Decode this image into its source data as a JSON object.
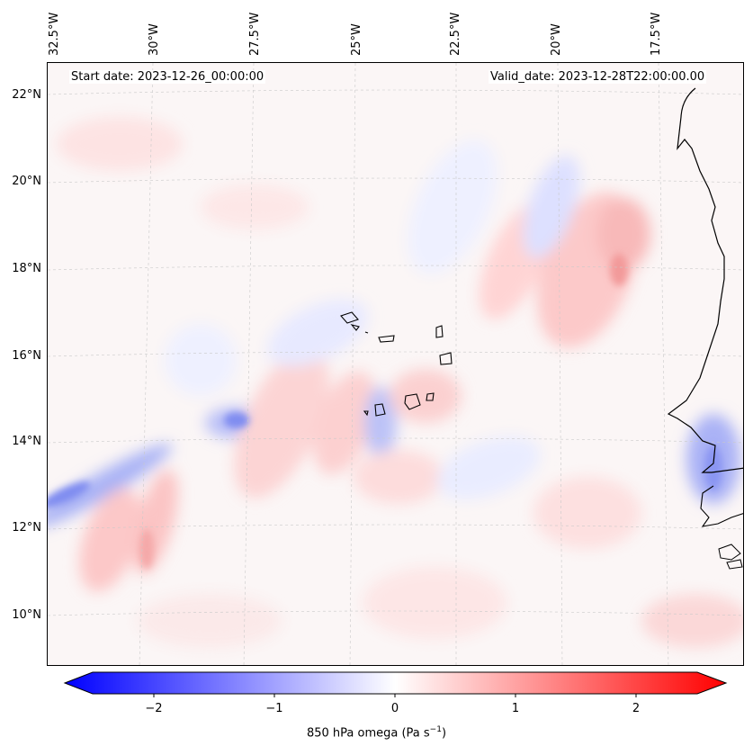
{
  "map": {
    "start_date": "Start date: 2023-12-26_00:00:00",
    "valid_date": "Valid_date: 2023-12-28T22:00:00.00",
    "lat_labels": [
      "22°N",
      "20°N",
      "18°N",
      "16°N",
      "14°N",
      "12°N",
      "10°N"
    ],
    "lon_labels": [
      "32.5°W",
      "30°W",
      "27.5°W",
      "25°W",
      "22.5°W",
      "20°W",
      "17.5°W"
    ],
    "features": [
      "coastline-africa",
      "cape-verde-islands"
    ]
  },
  "colorbar": {
    "ticks": [
      "−2",
      "−1",
      "0",
      "1",
      "2"
    ],
    "title": "850 hPa omega (Pa s",
    "title_sup": "−1",
    "title_end": ")",
    "range": [
      -2.6,
      2.6
    ],
    "colormap": "bwr",
    "colors": {
      "negative": "#0000ff",
      "zero": "#ffffff",
      "positive": "#ff0000"
    }
  }
}
